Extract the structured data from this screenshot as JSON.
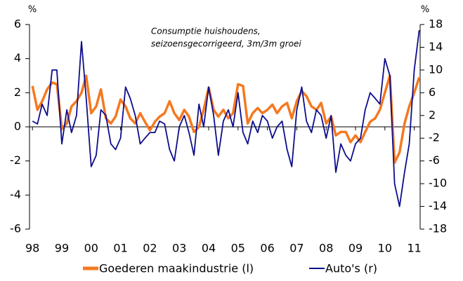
{
  "chart_data": {
    "type": "line",
    "annotation": [
      "Consumptie huishoudens,",
      "seizoensgecorrigeerd, 3m/3m groei"
    ],
    "y_label": "%",
    "y2_label": "%",
    "xlim": [
      1997.9,
      2011.2
    ],
    "xticks": [
      {
        "value": 1998,
        "label": "98"
      },
      {
        "value": 1999,
        "label": "99"
      },
      {
        "value": 2000,
        "label": "00"
      },
      {
        "value": 2001,
        "label": "01"
      },
      {
        "value": 2002,
        "label": "02"
      },
      {
        "value": 2003,
        "label": "03"
      },
      {
        "value": 2004,
        "label": "04"
      },
      {
        "value": 2005,
        "label": "05"
      },
      {
        "value": 2006,
        "label": "06"
      },
      {
        "value": 2007,
        "label": "07"
      },
      {
        "value": 2008,
        "label": "08"
      },
      {
        "value": 2009,
        "label": "09"
      },
      {
        "value": 2010,
        "label": "10"
      },
      {
        "value": 2011,
        "label": "11"
      }
    ],
    "ylim": [
      -6,
      6
    ],
    "yticks": [
      -6,
      -4,
      -2,
      0,
      2,
      4,
      6
    ],
    "y2lim": [
      -18,
      18
    ],
    "y2ticks": [
      -18,
      -14,
      -10,
      -6,
      -2,
      2,
      6,
      10,
      14,
      18
    ],
    "x": [
      1998,
      1998.17,
      1998.33,
      1998.5,
      1998.67,
      1998.83,
      1999,
      1999.17,
      1999.33,
      1999.5,
      1999.67,
      1999.83,
      2000,
      2000.17,
      2000.33,
      2000.5,
      2000.67,
      2000.83,
      2001,
      2001.17,
      2001.33,
      2001.5,
      2001.67,
      2001.83,
      2002,
      2002.17,
      2002.33,
      2002.5,
      2002.67,
      2002.83,
      2003,
      2003.17,
      2003.33,
      2003.5,
      2003.67,
      2003.83,
      2004,
      2004.17,
      2004.33,
      2004.5,
      2004.67,
      2004.83,
      2005,
      2005.17,
      2005.33,
      2005.5,
      2005.67,
      2005.83,
      2006,
      2006.17,
      2006.33,
      2006.5,
      2006.67,
      2006.83,
      2007,
      2007.17,
      2007.33,
      2007.5,
      2007.67,
      2007.83,
      2008,
      2008.17,
      2008.33,
      2008.5,
      2008.67,
      2008.83,
      2009,
      2009.17,
      2009.33,
      2009.5,
      2009.67,
      2009.83,
      2010,
      2010.17,
      2010.33,
      2010.5,
      2010.67,
      2010.83,
      2011,
      2011.17
    ],
    "series": [
      {
        "name": "Goederen maakindustrie (l)",
        "color": "#f47920",
        "values": [
          2.4,
          1.0,
          1.5,
          2.2,
          2.6,
          2.5,
          -0.1,
          0.2,
          1.2,
          1.5,
          2.0,
          3.0,
          0.8,
          1.2,
          2.2,
          0.5,
          0.2,
          0.6,
          1.6,
          1.2,
          0.5,
          0.2,
          0.8,
          0.3,
          -0.2,
          0.3,
          0.6,
          0.8,
          1.5,
          0.8,
          0.4,
          1.0,
          0.6,
          -0.3,
          0.0,
          1.0,
          2.3,
          1.0,
          0.6,
          1.0,
          0.5,
          0.8,
          2.5,
          2.4,
          0.2,
          0.8,
          1.1,
          0.8,
          1.0,
          1.3,
          0.8,
          1.2,
          1.4,
          0.5,
          1.5,
          2.1,
          1.8,
          1.2,
          1.0,
          1.4,
          0.2,
          0.6,
          -0.5,
          -0.3,
          -0.3,
          -0.9,
          -0.5,
          -0.9,
          -0.3,
          0.3,
          0.5,
          1.0,
          2.0,
          3.0,
          -2.1,
          -1.5,
          0.2,
          1.2,
          2.0,
          2.9
        ]
      },
      {
        "name": "Auto's (r)",
        "color": "#0d0d8c",
        "axis": "y2",
        "values": [
          1,
          0.5,
          4,
          2,
          10,
          10,
          -3,
          3,
          -1,
          2,
          15,
          5,
          -7,
          -5,
          3,
          2,
          -3,
          -4,
          -2,
          7,
          5,
          2,
          -3,
          -2,
          -1,
          -1,
          1,
          0.5,
          -4,
          -6,
          0,
          2,
          -1,
          -5,
          4,
          0,
          7,
          2,
          -5,
          1,
          3,
          0,
          6,
          -1,
          -3,
          1,
          -1,
          2,
          1,
          -2,
          0,
          1,
          -4,
          -7,
          3,
          7,
          1,
          -1,
          3,
          2,
          -2,
          2,
          -8,
          -3,
          -5,
          -6,
          -3,
          -2,
          3,
          6,
          5,
          4,
          12,
          9,
          -10,
          -14,
          -8,
          -3,
          10,
          17
        ]
      }
    ]
  }
}
